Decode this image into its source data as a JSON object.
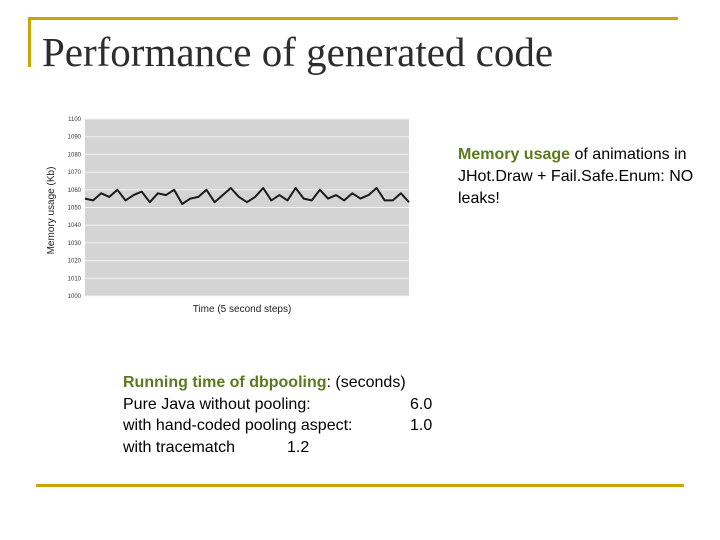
{
  "slide": {
    "title": "Performance of generated code",
    "colors": {
      "accent_green": "#5b7a1e",
      "frame_gold": "#c9a70a"
    }
  },
  "side_note": {
    "highlight": "Memory usage",
    "text": "of animations in JHot.Draw + Fail.Safe.Enum: NO leaks!"
  },
  "runtime": {
    "heading": "Running time of dbpooling",
    "heading_suffix": ": (seconds)",
    "rows": [
      {
        "label": "Pure Java without pooling:",
        "value": "6.0"
      },
      {
        "label": "with hand-coded pooling aspect:",
        "value": "1.0"
      },
      {
        "label": "with tracematch",
        "value": "1.2"
      }
    ]
  },
  "chart_data": {
    "type": "line",
    "xlabel": "Time (5 second steps)",
    "ylabel": "Memory usage (Kb)",
    "ylim": [
      1000,
      1100
    ],
    "yticks": [
      1000,
      1010,
      1020,
      1030,
      1040,
      1050,
      1060,
      1070,
      1080,
      1090,
      1100
    ],
    "grid": true,
    "series": [
      {
        "values": [
          1055,
          1054,
          1058,
          1056,
          1060,
          1054,
          1057,
          1059,
          1053,
          1058,
          1057,
          1060,
          1052,
          1055,
          1056,
          1060,
          1053,
          1057,
          1061,
          1056,
          1053,
          1056,
          1061,
          1054,
          1057,
          1054,
          1061,
          1055,
          1054,
          1060,
          1055,
          1057,
          1054,
          1058,
          1055,
          1057,
          1061,
          1054,
          1054,
          1058,
          1053
        ]
      }
    ]
  }
}
